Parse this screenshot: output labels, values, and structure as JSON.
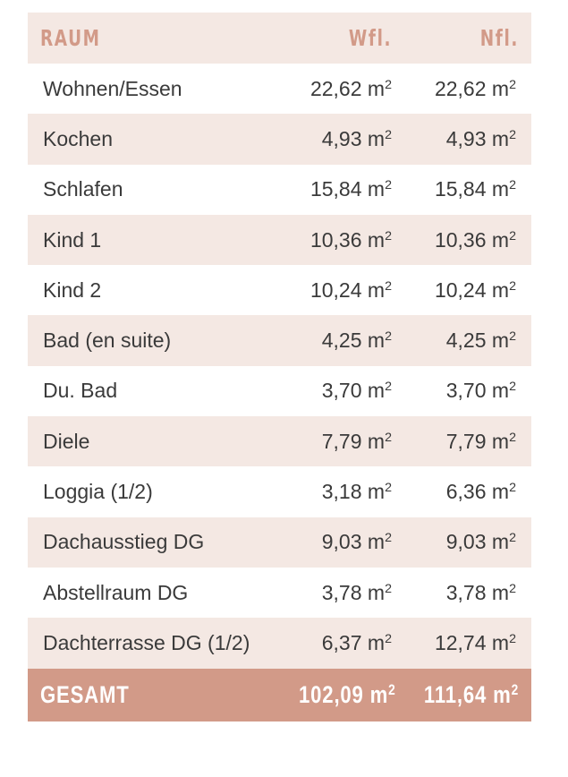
{
  "header": {
    "room": "RAUM",
    "wfl": "Wfl.",
    "nfl": "Nfl."
  },
  "unit_base": "m",
  "unit_exp": "2",
  "rows": [
    {
      "room": "Wohnen/Essen",
      "wfl": "22,62",
      "nfl": "22,62"
    },
    {
      "room": "Kochen",
      "wfl": "4,93",
      "nfl": "4,93"
    },
    {
      "room": "Schlafen",
      "wfl": "15,84",
      "nfl": "15,84"
    },
    {
      "room": "Kind 1",
      "wfl": "10,36",
      "nfl": "10,36"
    },
    {
      "room": "Kind 2",
      "wfl": "10,24",
      "nfl": "10,24"
    },
    {
      "room": "Bad (en suite)",
      "wfl": "4,25",
      "nfl": "4,25"
    },
    {
      "room": "Du. Bad",
      "wfl": "3,70",
      "nfl": "3,70"
    },
    {
      "room": "Diele",
      "wfl": "7,79",
      "nfl": "7,79"
    },
    {
      "room": "Loggia (1/2)",
      "wfl": "3,18",
      "nfl": "6,36"
    },
    {
      "room": "Dachausstieg DG",
      "wfl": "9,03",
      "nfl": "9,03"
    },
    {
      "room": "Abstellraum DG",
      "wfl": "3,78",
      "nfl": "3,78"
    },
    {
      "room": "Dachterrasse DG (1/2)",
      "wfl": "6,37",
      "nfl": "12,74"
    }
  ],
  "total": {
    "room": "GESAMT",
    "wfl": "102,09",
    "nfl": "111,64"
  },
  "colors": {
    "accent": "#d29a88",
    "shade": "#f4e8e3",
    "text": "#3a3a3a"
  }
}
